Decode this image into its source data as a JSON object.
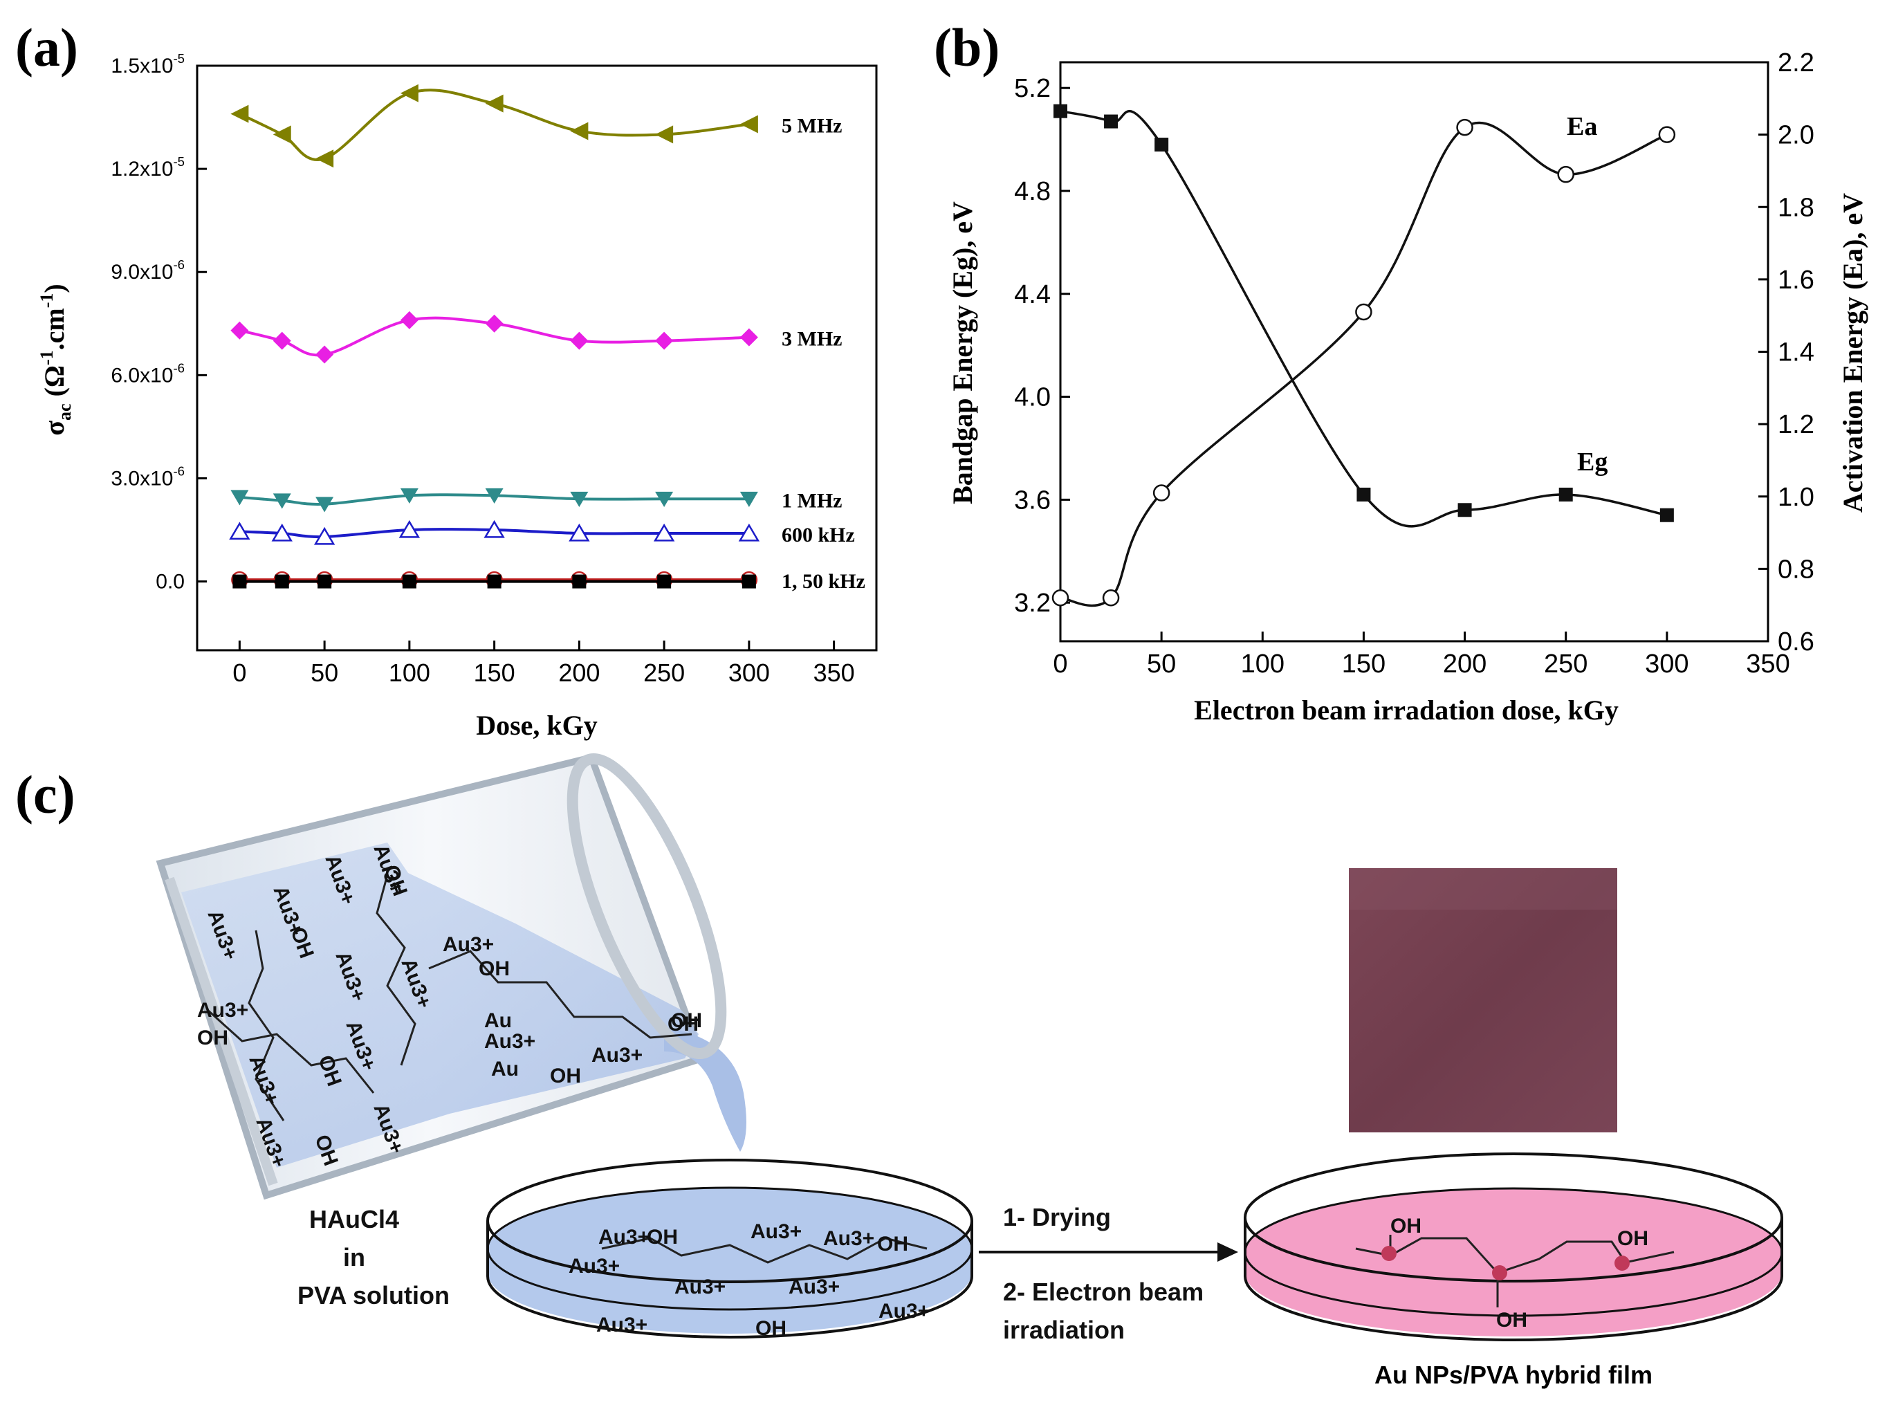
{
  "panels": {
    "a": {
      "label": "(a)"
    },
    "b": {
      "label": "(b)"
    },
    "c": {
      "label": "(c)"
    }
  },
  "chart_data": [
    {
      "id": "a",
      "type": "line",
      "xlabel": "Dose, kGy",
      "ylabel": "σac (Ω-1.cm-1)",
      "xlim": [
        -25,
        375
      ],
      "ylim": [
        -2e-06,
        1.5e-05
      ],
      "xticks": [
        0,
        50,
        100,
        150,
        200,
        250,
        300,
        350
      ],
      "yticks": [
        {
          "value": 0,
          "label": "0.0"
        },
        {
          "value": 3e-06,
          "label": "3.0x10-6"
        },
        {
          "value": 6e-06,
          "label": "6.0x10-6"
        },
        {
          "value": 9e-06,
          "label": "9.0x10-6"
        },
        {
          "value": 1.2e-05,
          "label": "1.2x10-5"
        },
        {
          "value": 1.5e-05,
          "label": "1.5x10-5"
        }
      ],
      "x": [
        0,
        25,
        50,
        100,
        150,
        200,
        250,
        300
      ],
      "series": [
        {
          "name": "5 MHz",
          "marker": "triangle-left",
          "color": "#808000",
          "values": [
            1.36e-05,
            1.3e-05,
            1.23e-05,
            1.42e-05,
            1.39e-05,
            1.31e-05,
            1.3e-05,
            1.33e-05
          ]
        },
        {
          "name": "3 MHz",
          "marker": "diamond",
          "color": "#e81fe3",
          "values": [
            7.3e-06,
            7e-06,
            6.6e-06,
            7.6e-06,
            7.5e-06,
            7e-06,
            7e-06,
            7.1e-06
          ]
        },
        {
          "name": "1 MHz",
          "marker": "triangle-down",
          "color": "#2e8b8b",
          "values": [
            2.45e-06,
            2.35e-06,
            2.25e-06,
            2.5e-06,
            2.5e-06,
            2.4e-06,
            2.4e-06,
            2.4e-06
          ]
        },
        {
          "name": "600 kHz",
          "marker": "triangle-open",
          "color": "#1c1cc9",
          "values": [
            1.45e-06,
            1.4e-06,
            1.3e-06,
            1.5e-06,
            1.5e-06,
            1.4e-06,
            1.4e-06,
            1.4e-06
          ]
        },
        {
          "name": "1, 50 kHz",
          "marker": "circle-open",
          "color": "#c22020",
          "values": [
            5e-08,
            5e-08,
            5e-08,
            5e-08,
            5e-08,
            5e-08,
            5e-08,
            5e-08
          ]
        },
        {
          "name": "",
          "marker": "square",
          "color": "#000000",
          "values": [
            0,
            0,
            0,
            0,
            0,
            0,
            0,
            0
          ]
        }
      ]
    },
    {
      "id": "b",
      "type": "scatter",
      "xlabel": "Electron beam irradation dose, kGy",
      "ylabel_left": "Bandgap Energy (Eg), eV",
      "ylabel_right": "Activation Energy (Ea), eV",
      "xlim": [
        0,
        350
      ],
      "ylim_left": [
        3.05,
        5.3
      ],
      "ylim_right": [
        0.6,
        2.2
      ],
      "xticks": [
        0,
        50,
        100,
        150,
        200,
        250,
        300,
        350
      ],
      "yticks_left": [
        "3.2",
        "3.6",
        "4.0",
        "4.4",
        "4.8",
        "5.2"
      ],
      "yticks_right": [
        "0.6",
        "0.8",
        "1.0",
        "1.2",
        "1.4",
        "1.6",
        "1.8",
        "2.0",
        "2.2"
      ],
      "series": [
        {
          "name": "Eg",
          "axis": "left",
          "marker": "square",
          "x": [
            0,
            25,
            50,
            150,
            200,
            250,
            300
          ],
          "values": [
            5.11,
            5.07,
            4.98,
            3.62,
            3.56,
            3.62,
            3.54
          ]
        },
        {
          "name": "Ea",
          "axis": "right",
          "marker": "circle-open",
          "x": [
            0,
            25,
            50,
            150,
            200,
            250,
            300
          ],
          "values": [
            0.72,
            0.72,
            1.01,
            1.51,
            2.02,
            1.89,
            2.0
          ]
        }
      ]
    }
  ],
  "scheme": {
    "beaker_ions": [
      "Au3+",
      "Au3+",
      "Au3+",
      "Au3+",
      "Au3+",
      "Au3+",
      "Au3+",
      "Au3+",
      "Au3+",
      "Au3+",
      "Au3+",
      "Au3+",
      "Au3+",
      "Au3+"
    ],
    "beaker_oh": [
      "OH",
      "OH",
      "OH",
      "OH",
      "OH",
      "OH",
      "OH",
      "OH",
      "OH"
    ],
    "solution_label": [
      "HAuCl4",
      "in",
      "PVA solution"
    ],
    "dish_ions": [
      "Au3+",
      "Au3+",
      "Au3+",
      "Au3+",
      "Au3+",
      "Au3+",
      "Au3+",
      "Au3+"
    ],
    "dish_oh": [
      "OH",
      "OH",
      "OH"
    ],
    "step1": "1- Drying",
    "step2": [
      "2- Electron beam",
      "irradiation"
    ],
    "film_oh": [
      "OH",
      "OH",
      "OH"
    ],
    "film_label": "Au NPs/PVA hybrid film",
    "colors": {
      "solution": "#b4c9ec",
      "film": "#f49fc6",
      "photo": "#74404f",
      "nanoparticle": "#c0395a"
    }
  }
}
